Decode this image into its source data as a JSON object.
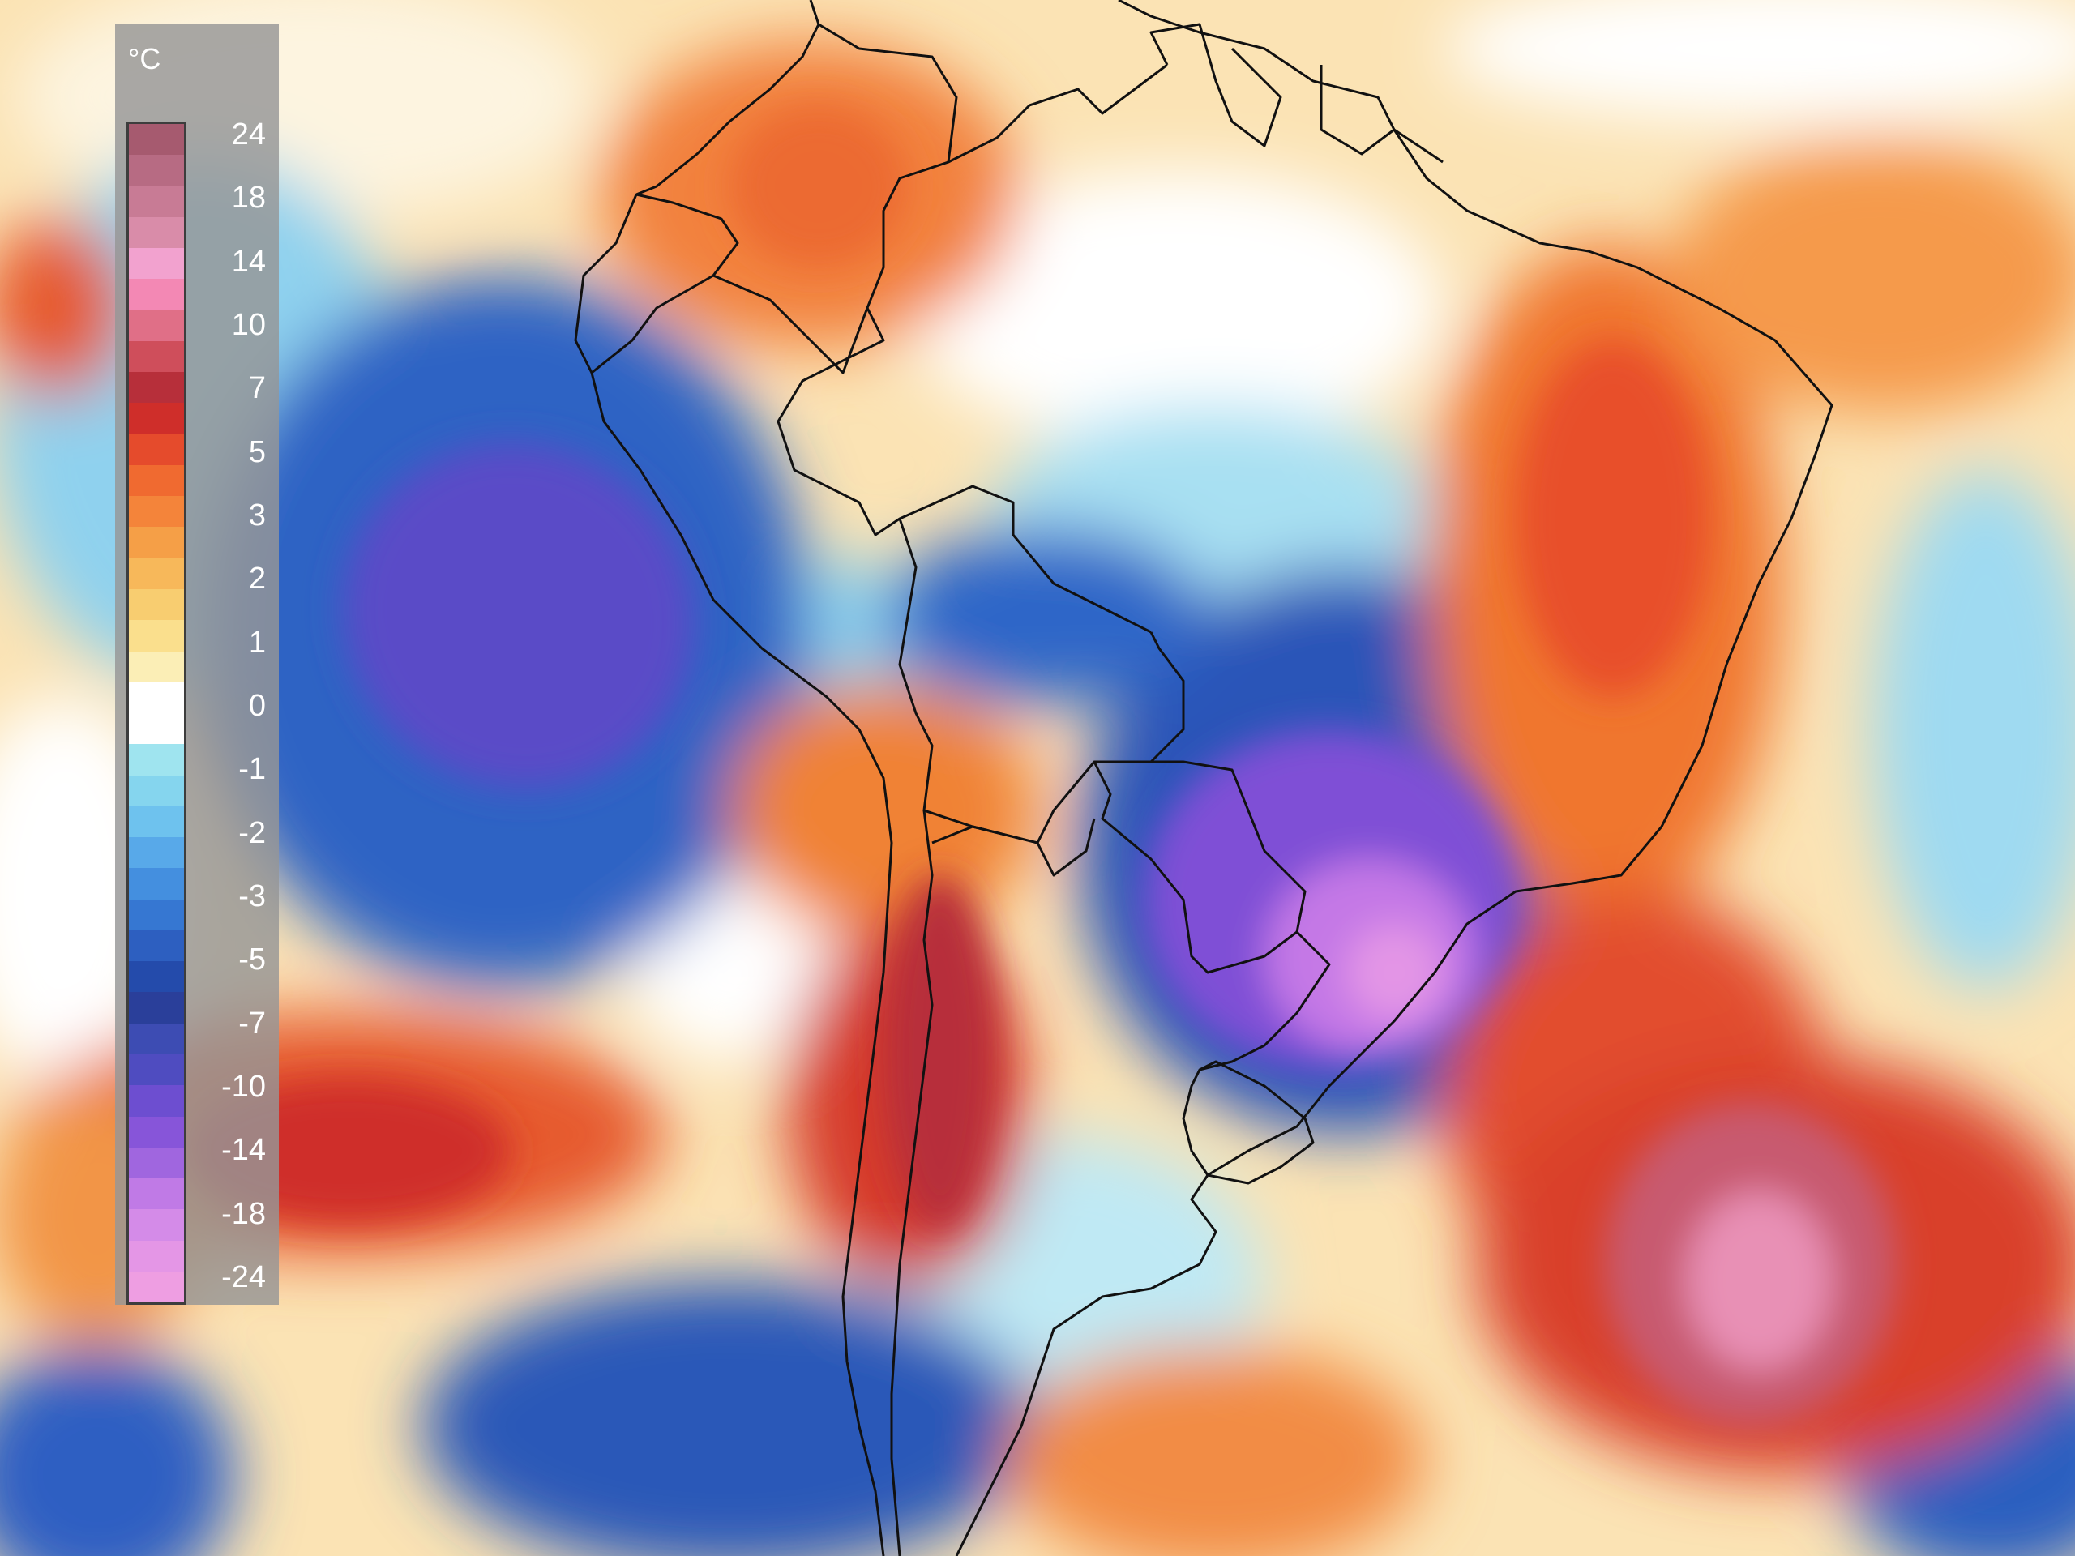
{
  "legend": {
    "unit": "°C",
    "ticks": [
      "24",
      "18",
      "14",
      "10",
      "7",
      "5",
      "3",
      "2",
      "1",
      "0",
      "-1",
      "-2",
      "-3",
      "-5",
      "-7",
      "-10",
      "-14",
      "-18",
      "-24"
    ],
    "colors": [
      "#a65a6f",
      "#b76b83",
      "#c87b95",
      "#d98ca9",
      "#f2a2cf",
      "#f388b4",
      "#e06f87",
      "#cf4e5b",
      "#b72f3a",
      "#cf2e2a",
      "#e54b2c",
      "#f06a30",
      "#f4843a",
      "#f59f47",
      "#f7b85a",
      "#f8cd70",
      "#fadf8d",
      "#fbeeb6",
      "#ffffff",
      "#ffffff",
      "#9fe4ef",
      "#85d5ee",
      "#6ec2ee",
      "#58a9e9",
      "#448fdf",
      "#3677d2",
      "#2d5fc0",
      "#244bab",
      "#2a3f9a",
      "#3d4cb3",
      "#4f4cc0",
      "#6d4ed0",
      "#8755d9",
      "#a066df",
      "#c07ae6",
      "#d48be8",
      "#e496e6",
      "#ee9ee2"
    ]
  }
}
